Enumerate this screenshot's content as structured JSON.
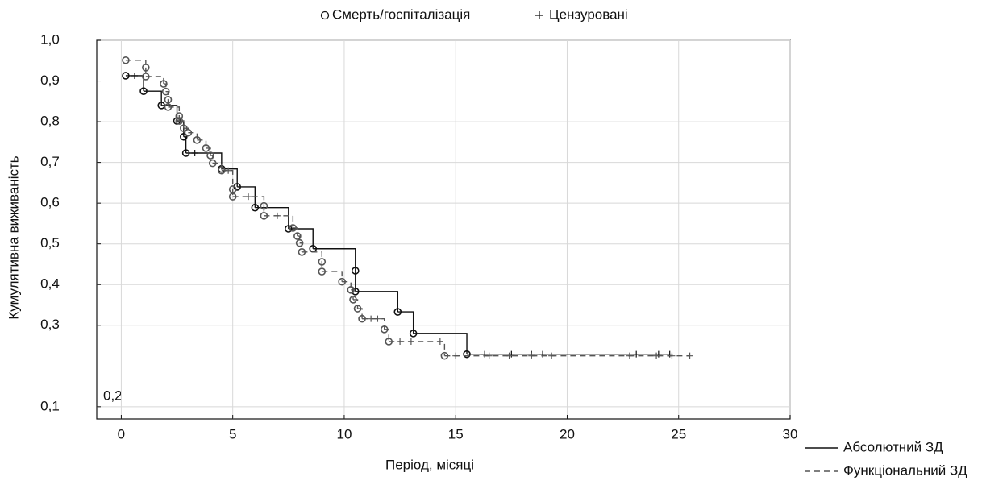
{
  "chart_data": {
    "type": "kaplan-meier",
    "xlabel": "Період, місяці",
    "ylabel": "Кумулятивна виживаність",
    "annotation": "0,2",
    "marker_legend": [
      "Смерть/госпіталізація",
      "Цензуровані"
    ],
    "xlim": [
      -1.1,
      30
    ],
    "xticks": [
      0,
      5,
      10,
      15,
      20,
      25,
      30
    ],
    "ylim": [
      0.07,
      1.0
    ],
    "yticks": [
      {
        "value": 0.1,
        "label": "0,1"
      },
      {
        "value": 0.3,
        "label": "0,3"
      },
      {
        "value": 0.4,
        "label": "0,4"
      },
      {
        "value": 0.5,
        "label": "0,5"
      },
      {
        "value": 0.6,
        "label": "0,6"
      },
      {
        "value": 0.7,
        "label": "0,7"
      },
      {
        "value": 0.8,
        "label": "0,8"
      },
      {
        "value": 0.9,
        "label": "0,9"
      },
      {
        "value": 1.0,
        "label": "1,0"
      }
    ],
    "grid": true,
    "series": [
      {
        "name": "Абсолютний ЗД",
        "color": "#111111",
        "dash": "solid",
        "x": [
          0.2,
          1.0,
          1.8,
          2.5,
          2.8,
          2.9,
          4.5,
          5.2,
          6.0,
          7.5,
          8.6,
          10.5,
          10.5,
          12.4,
          13.1,
          15.5
        ],
        "values": [
          0.913,
          0.875,
          0.84,
          0.802,
          0.763,
          0.723,
          0.684,
          0.64,
          0.589,
          0.537,
          0.488,
          0.434,
          0.383,
          0.333,
          0.28,
          0.229
        ],
        "censored_x": [
          0.6,
          3.3,
          16.3,
          17.5,
          18.4,
          18.9,
          23.1,
          24.1,
          24.6
        ],
        "censored_values": [
          0.913,
          0.723,
          0.229,
          0.229,
          0.229,
          0.229,
          0.229,
          0.229,
          0.229
        ]
      },
      {
        "name": "Функціональний ЗД",
        "color": "#555555",
        "dash": "dashed",
        "x": [
          0.2,
          1.1,
          1.1,
          1.9,
          2.0,
          2.1,
          2.1,
          2.6,
          2.6,
          2.8,
          3.0,
          3.4,
          3.8,
          4.0,
          4.1,
          4.5,
          5.0,
          5.0,
          6.4,
          6.4,
          7.7,
          7.9,
          8.0,
          8.1,
          9.0,
          9.0,
          9.9,
          10.3,
          10.4,
          10.6,
          10.8,
          11.8,
          12.0,
          14.5
        ],
        "values": [
          0.951,
          0.933,
          0.911,
          0.893,
          0.874,
          0.854,
          0.836,
          0.814,
          0.802,
          0.784,
          0.773,
          0.755,
          0.735,
          0.717,
          0.698,
          0.68,
          0.634,
          0.616,
          0.593,
          0.569,
          0.539,
          0.519,
          0.502,
          0.48,
          0.456,
          0.432,
          0.407,
          0.387,
          0.363,
          0.341,
          0.316,
          0.29,
          0.26,
          0.225
        ],
        "censored_x": [
          4.8,
          5.7,
          7.0,
          11.2,
          11.5,
          12.5,
          13.0,
          14.3,
          15.0,
          16.5,
          17.4,
          18.4,
          19.3,
          22.8,
          24.0,
          24.7,
          25.5
        ],
        "censored_values": [
          0.68,
          0.616,
          0.569,
          0.316,
          0.316,
          0.26,
          0.26,
          0.26,
          0.225,
          0.225,
          0.225,
          0.225,
          0.225,
          0.225,
          0.225,
          0.225,
          0.225
        ]
      }
    ]
  }
}
